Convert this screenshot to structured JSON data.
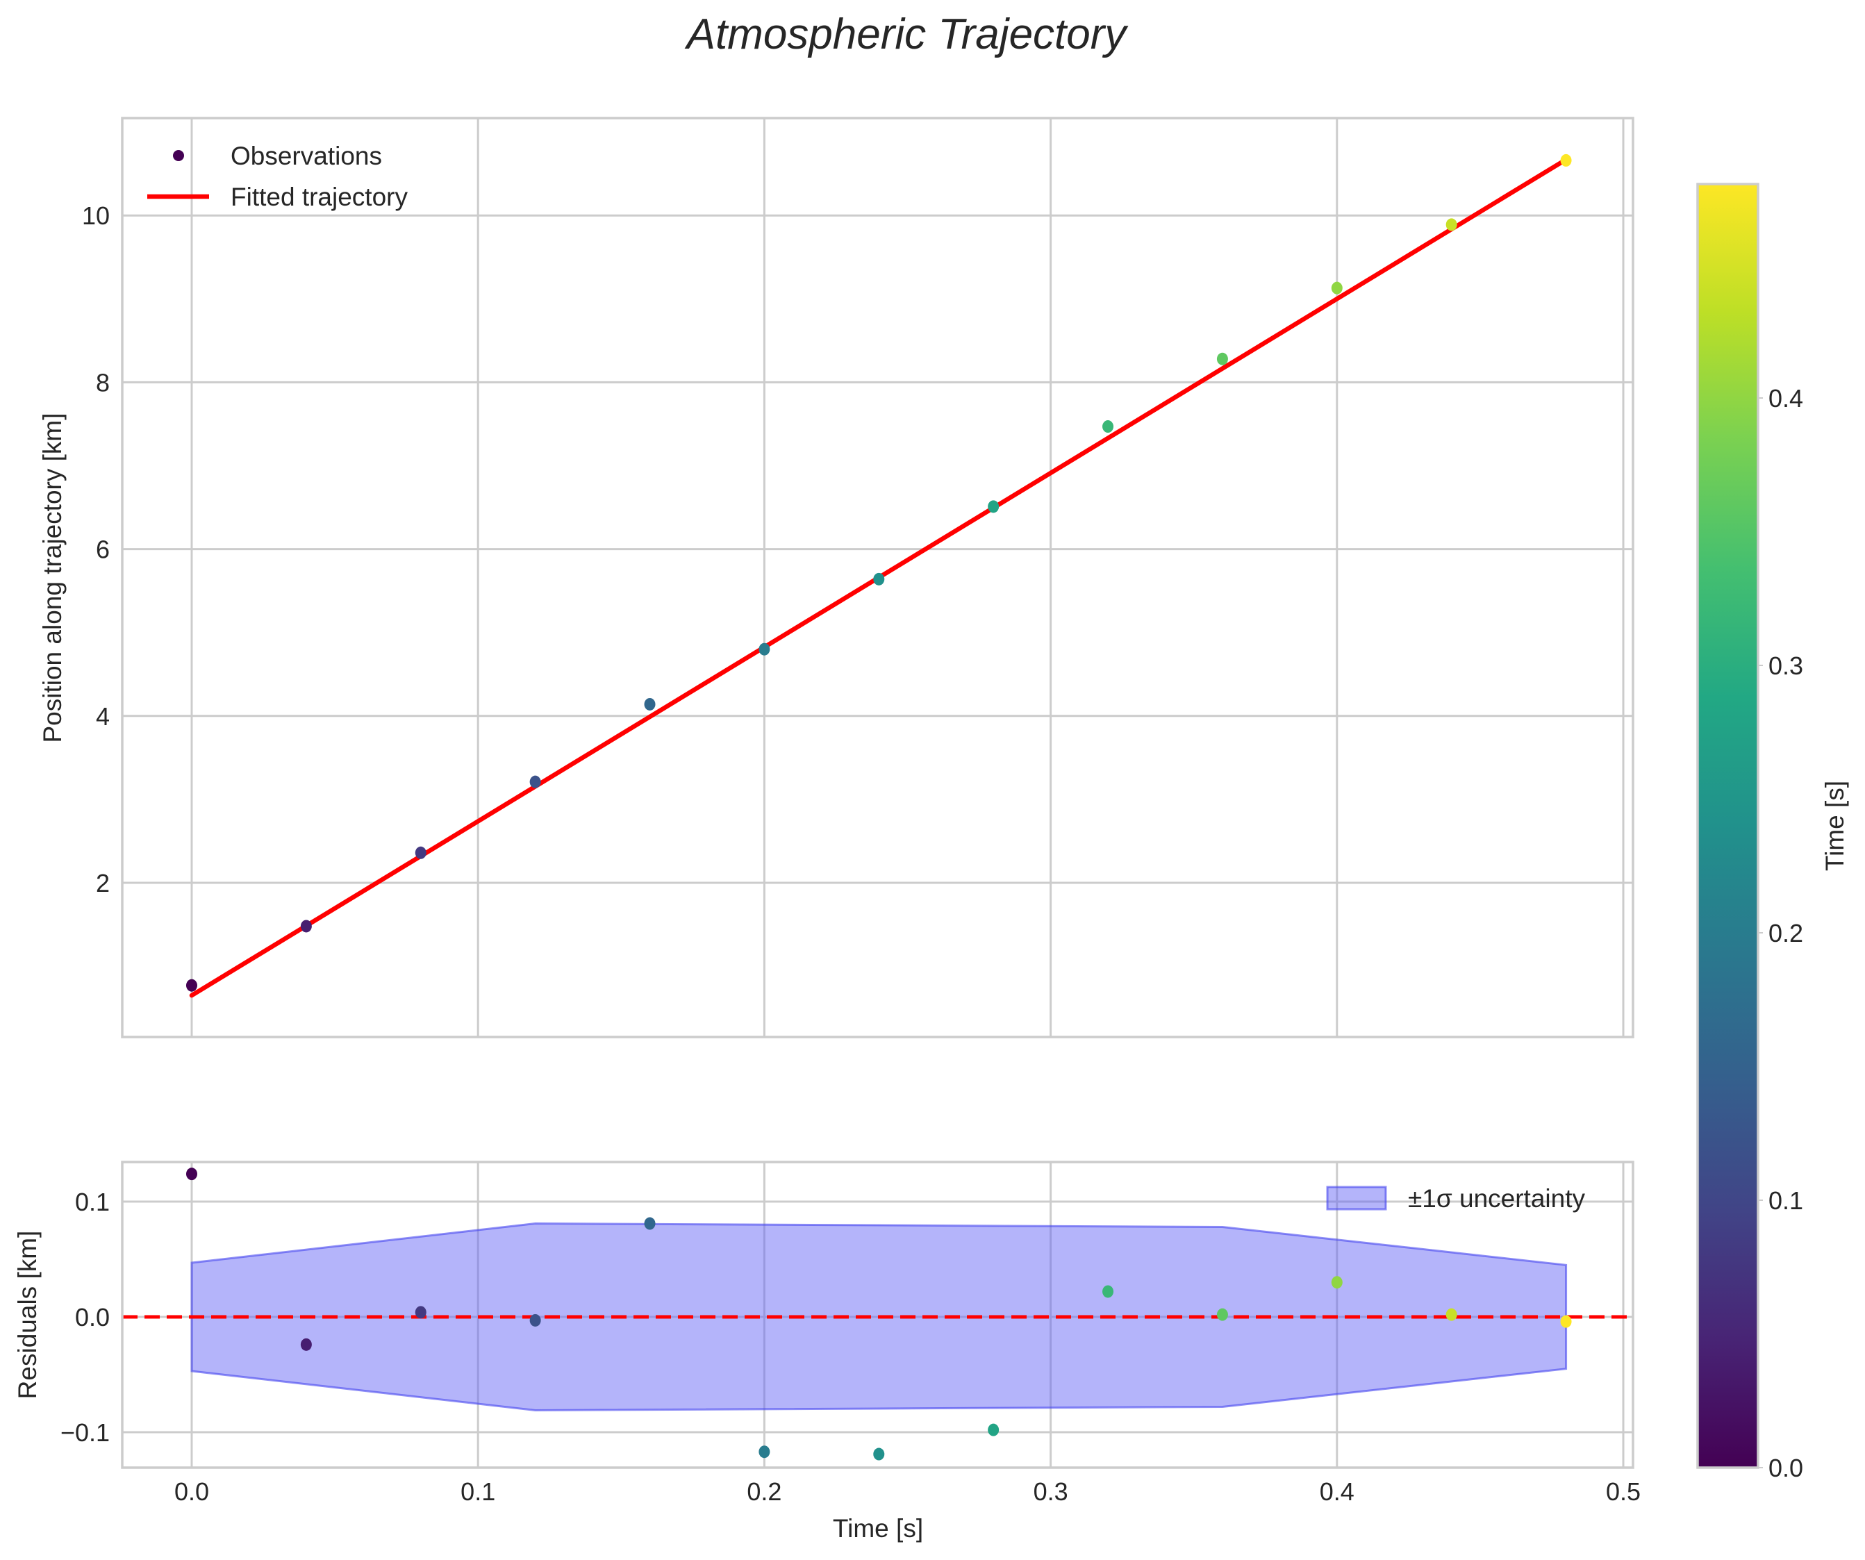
{
  "title": "Atmospheric Trajectory",
  "top_panel": {
    "ylabel": "Position along trajectory [km]",
    "yticks": [
      "2",
      "4",
      "6",
      "8",
      "10"
    ],
    "legend": {
      "observations": "Observations",
      "fit": "Fitted trajectory"
    }
  },
  "bottom_panel": {
    "ylabel": "Residuals [km]",
    "xlabel": "Time [s]",
    "yticks": [
      "−0.1",
      "0.0",
      "0.1"
    ],
    "xticks": [
      "0.0",
      "0.1",
      "0.2",
      "0.3",
      "0.4",
      "0.5"
    ],
    "legend": {
      "band": "±1σ uncertainty"
    }
  },
  "colorbar": {
    "label": "Time [s]",
    "ticks": [
      "0.0",
      "0.1",
      "0.2",
      "0.3",
      "0.4"
    ]
  },
  "colors": {
    "fit_line": "#ff0000",
    "band_fill": "#b3b3fb",
    "band_edge": "#6e6ef0",
    "grid": "#cccccc",
    "text": "#262626"
  },
  "chart_data": [
    {
      "type": "scatter",
      "title": "Atmospheric Trajectory",
      "xlabel": "Time [s]",
      "ylabel": "Position along trajectory [km]",
      "xlim": [
        -0.024,
        0.504
      ],
      "ylim": [
        0.15,
        11.2
      ],
      "grid": true,
      "legend_position": "upper left",
      "x": [
        0.0,
        0.04,
        0.08,
        0.12,
        0.16,
        0.2,
        0.24,
        0.28,
        0.32,
        0.36,
        0.4,
        0.44,
        0.48
      ],
      "series": [
        {
          "name": "Observations",
          "kind": "scatter",
          "colormap": "viridis",
          "values": [
            0.77,
            1.48,
            2.36,
            3.21,
            4.14,
            4.8,
            5.64,
            6.51,
            7.47,
            8.28,
            9.13,
            9.89,
            10.66
          ]
        },
        {
          "name": "Fitted trajectory",
          "kind": "line",
          "color": "#ff0000",
          "x": [
            0.0,
            0.48
          ],
          "values": [
            0.65,
            10.67
          ]
        }
      ]
    },
    {
      "type": "scatter",
      "xlabel": "Time [s]",
      "ylabel": "Residuals [km]",
      "xlim": [
        -0.024,
        0.504
      ],
      "ylim": [
        -0.134,
        0.136
      ],
      "grid": true,
      "legend_position": "upper right",
      "x": [
        0.0,
        0.04,
        0.08,
        0.12,
        0.16,
        0.2,
        0.24,
        0.28,
        0.32,
        0.36,
        0.4,
        0.44,
        0.48
      ],
      "series": [
        {
          "name": "Residuals",
          "kind": "scatter",
          "colormap": "viridis",
          "values": [
            0.124,
            -0.024,
            0.004,
            -0.003,
            0.081,
            -0.117,
            -0.119,
            -0.098,
            0.022,
            0.002,
            0.03,
            0.002,
            -0.004
          ]
        },
        {
          "name": "zero line",
          "kind": "hline",
          "style": "dashed",
          "color": "#ff0000",
          "value": 0.0
        },
        {
          "name": "±1σ uncertainty",
          "kind": "fill_between",
          "x": [
            0.0,
            0.12,
            0.36,
            0.48
          ],
          "upper": [
            0.047,
            0.081,
            0.078,
            0.045
          ],
          "lower": [
            -0.047,
            -0.081,
            -0.078,
            -0.045
          ]
        }
      ]
    },
    {
      "type": "colorbar",
      "label": "Time [s]",
      "colormap": "viridis",
      "range": [
        0.0,
        0.48
      ],
      "ticks": [
        0.0,
        0.1,
        0.2,
        0.3,
        0.4
      ]
    }
  ]
}
